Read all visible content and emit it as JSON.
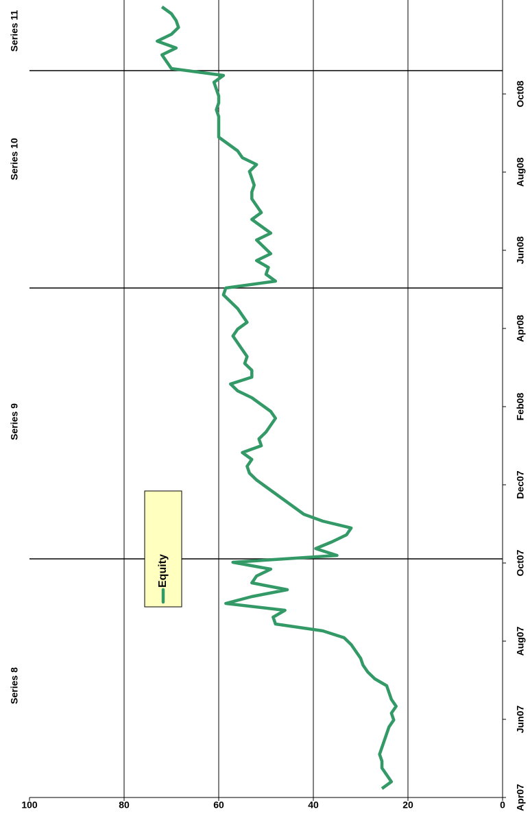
{
  "chart_data": {
    "type": "line",
    "section_labels": [
      "Series 8",
      "Series 9",
      "Series 10",
      "Series 11"
    ],
    "xticks": [
      "Apr07",
      "Jun07",
      "Aug07",
      "Oct07",
      "Dec07",
      "Feb08",
      "Apr08",
      "Jun08",
      "Aug08",
      "Oct08"
    ],
    "series": [
      {
        "name": "Equity",
        "color": "#339966",
        "values": [
          25.5,
          23.5,
          24.5,
          25.5,
          25.5,
          26,
          25.5,
          25,
          24.5,
          24,
          23,
          23.5,
          22.5,
          23.5,
          24,
          24.5,
          27,
          28.5,
          29.5,
          30,
          31,
          32,
          33.5,
          38,
          48,
          48.5,
          46,
          58.5,
          53,
          45.5,
          53,
          52,
          49,
          57,
          35,
          39.5,
          36,
          33,
          32,
          38,
          42,
          44,
          46,
          48,
          50,
          52,
          53.5,
          54,
          53,
          55,
          51,
          51.5,
          50,
          49,
          48,
          49,
          51,
          53,
          56,
          57.5,
          53,
          53,
          54.5,
          54,
          55,
          56,
          57,
          56,
          54,
          55,
          56,
          57.5,
          59,
          58.5,
          48,
          50,
          49.5,
          52,
          49,
          50.5,
          52,
          49,
          51,
          53,
          51,
          52,
          53,
          53,
          52.5,
          53,
          53.5,
          52,
          55,
          56,
          58,
          60,
          60,
          60,
          60,
          60.5,
          60,
          60,
          60.5,
          61,
          59,
          70,
          71,
          72,
          69,
          73,
          70,
          68.5,
          69,
          70,
          72
        ]
      }
    ],
    "ylim": [
      0,
      100
    ],
    "yticks": [
      0,
      20,
      40,
      60,
      80,
      100
    ],
    "grid": true,
    "legend": "upper-left"
  }
}
